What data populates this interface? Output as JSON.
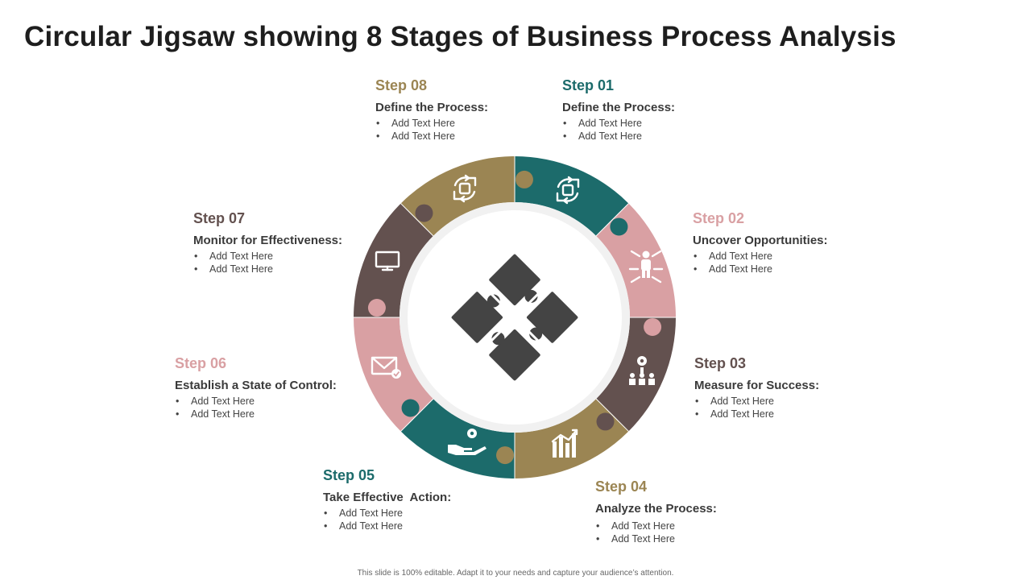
{
  "title": "Circular Jigsaw showing 8 Stages of Business Process Analysis",
  "colors": {
    "teal": "#1c6b6b",
    "pink": "#d9a0a3",
    "brown": "#63514f",
    "olive": "#9b8553",
    "center_puzzle": "#444444"
  },
  "steps": [
    {
      "num": "Step 01",
      "heading": "Define the Process:",
      "bullets": [
        "Add Text Here",
        "Add Text Here"
      ],
      "color": "#1c6b6b",
      "icon": "process-cycle-icon"
    },
    {
      "num": "Step 02",
      "heading": "Uncover Opportunities:",
      "bullets": [
        "Add Text Here",
        "Add Text Here"
      ],
      "color": "#d9a0a3",
      "icon": "person-arrows-icon"
    },
    {
      "num": "Step 03",
      "heading": "Measure for Success:",
      "bullets": [
        "Add Text Here",
        "Add Text Here"
      ],
      "color": "#63514f",
      "icon": "team-hierarchy-icon"
    },
    {
      "num": "Step 04",
      "heading": "Analyze the Process:",
      "bullets": [
        "Add Text Here",
        "Add Text Here"
      ],
      "color": "#9b8553",
      "icon": "growth-chart-icon"
    },
    {
      "num": "Step 05",
      "heading": "Take Effective  Action:",
      "bullets": [
        "Add Text Here",
        "Add Text Here"
      ],
      "color": "#1c6b6b",
      "icon": "hand-gear-icon"
    },
    {
      "num": "Step 06",
      "heading": "Establish a State of Control:",
      "bullets": [
        "Add Text Here",
        "Add Text Here"
      ],
      "color": "#d9a0a3",
      "icon": "email-check-icon"
    },
    {
      "num": "Step 07",
      "heading": "Monitor for Effectiveness:",
      "bullets": [
        "Add Text Here",
        "Add Text Here"
      ],
      "color": "#63514f",
      "icon": "monitor-icon"
    },
    {
      "num": "Step 08",
      "heading": "Define the Process:",
      "bullets": [
        "Add Text Here",
        "Add Text Here"
      ],
      "color": "#9b8553",
      "icon": "process-cycle-icon"
    }
  ],
  "center_icon": "puzzle-pieces-icon",
  "footer": "This slide is 100% editable. Adapt it to your needs and capture your audience’s attention."
}
